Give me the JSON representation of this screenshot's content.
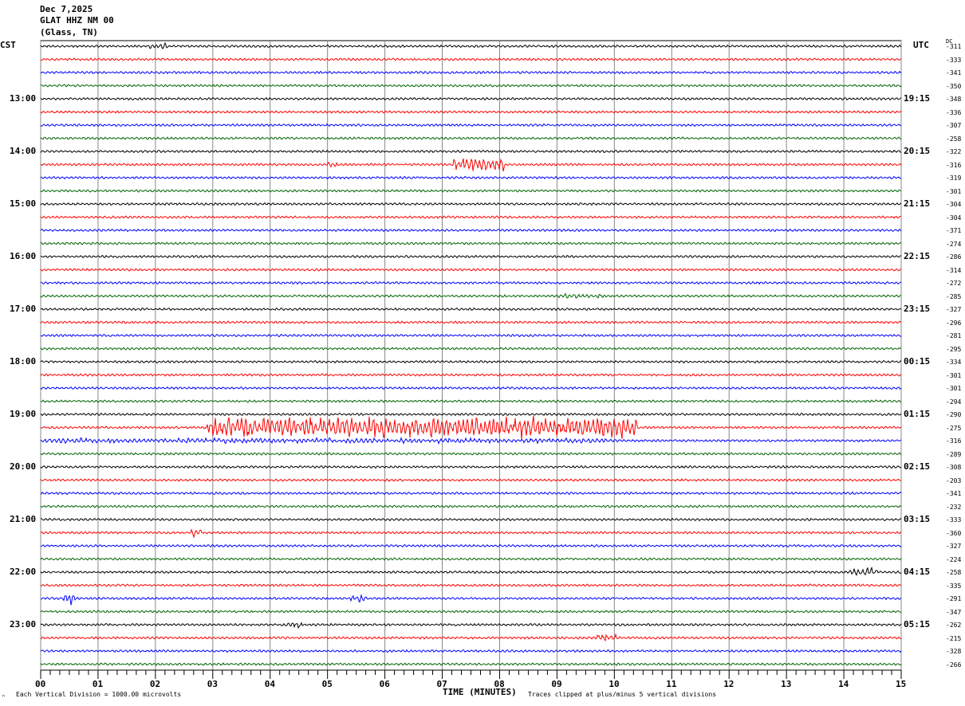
{
  "header": {
    "date": "Dec 7,2025",
    "station": "GLAT HHZ NM 00",
    "location": "(Glass, TN)"
  },
  "left_zone": "CST",
  "right_zone": "UTC",
  "dc_label": "DC",
  "footer": {
    "scale": "Each Vertical Division = 1000.00 microvolts",
    "xlabel": "TIME (MINUTES)",
    "clip": "Traces clipped at plus/minus 5 vertical divisions",
    "corner": "ⁿ"
  },
  "chart_data": {
    "type": "line",
    "title": "GLAT HHZ NM 00 (Glass, TN) Dec 7,2025",
    "xlabel": "TIME (MINUTES)",
    "xlim": [
      0,
      15
    ],
    "x_ticks": [
      "00",
      "01",
      "02",
      "03",
      "04",
      "05",
      "06",
      "07",
      "08",
      "09",
      "10",
      "11",
      "12",
      "13",
      "14",
      "15"
    ],
    "colors": [
      "#000000",
      "#ff0000",
      "#0000ff",
      "#006400"
    ],
    "cst_labels": [
      "13:00",
      "14:00",
      "15:00",
      "16:00",
      "17:00",
      "18:00",
      "19:00",
      "20:00",
      "21:00",
      "22:00",
      "23:00"
    ],
    "utc_labels": [
      "19:15",
      "20:15",
      "21:15",
      "22:15",
      "23:15",
      "00:15",
      "01:15",
      "02:15",
      "03:15",
      "04:15",
      "05:15"
    ],
    "dc_offsets": [
      -311,
      -333,
      -341,
      -350,
      -348,
      -336,
      -307,
      -258,
      -322,
      -316,
      -319,
      -301,
      -304,
      -304,
      -371,
      -274,
      -286,
      -314,
      -272,
      -285,
      -327,
      -296,
      -281,
      -295,
      -334,
      -301,
      -301,
      -294,
      -290,
      -275,
      -316,
      -289,
      -308,
      -203,
      -341,
      -232,
      -333,
      -360,
      -327,
      -224,
      -258,
      -335,
      -291,
      -347,
      -262,
      -215,
      -328,
      -266
    ],
    "rows": 48,
    "events": [
      {
        "row": 0,
        "minute": 1.9,
        "duration": 0.3,
        "amplitude": 2
      },
      {
        "row": 9,
        "minute": 5.0,
        "duration": 0.2,
        "amplitude": 2
      },
      {
        "row": 9,
        "minute": 7.2,
        "duration": 0.9,
        "amplitude": 6
      },
      {
        "row": 29,
        "minute": 2.9,
        "duration": 7.5,
        "amplitude": 8
      },
      {
        "row": 30,
        "minute": 0,
        "duration": 10,
        "amplitude": 1.8
      },
      {
        "row": 42,
        "minute": 0.4,
        "duration": 0.2,
        "amplitude": 4
      },
      {
        "row": 42,
        "minute": 5.4,
        "duration": 0.3,
        "amplitude": 3
      },
      {
        "row": 37,
        "minute": 2.6,
        "duration": 0.2,
        "amplitude": 2.5
      },
      {
        "row": 40,
        "minute": 14.1,
        "duration": 0.5,
        "amplitude": 3
      },
      {
        "row": 44,
        "minute": 4.3,
        "duration": 0.3,
        "amplitude": 2.5
      },
      {
        "row": 45,
        "minute": 9.7,
        "duration": 0.4,
        "amplitude": 2.5
      },
      {
        "row": 19,
        "minute": 9.0,
        "duration": 1.0,
        "amplitude": 1.6
      }
    ]
  }
}
